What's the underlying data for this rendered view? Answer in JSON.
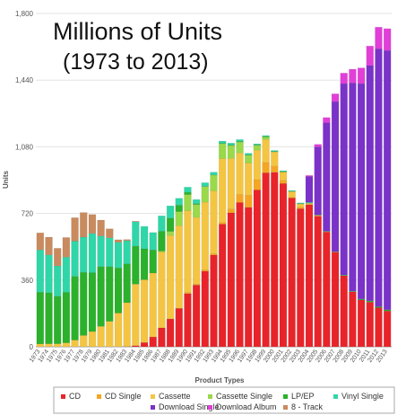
{
  "chart_data": {
    "type": "bar",
    "stacked": true,
    "title": "Millions of Units",
    "subtitle": "(1973 to 2013)",
    "xlabel": "Product Types",
    "ylabel": "Units",
    "ylim": [
      0,
      1800
    ],
    "yticks": [
      0,
      360,
      720,
      1080,
      1440,
      1800
    ],
    "yticklabels": [
      "0",
      "360",
      "720",
      "1,080",
      "1,440",
      "1,800"
    ],
    "grid": true,
    "legend_position": "bottom",
    "categories": [
      "1973",
      "1974",
      "1975",
      "1976",
      "1977",
      "1978",
      "1979",
      "1980",
      "1981",
      "1982",
      "1983",
      "1984",
      "1985",
      "1986",
      "1987",
      "1988",
      "1989",
      "1990",
      "1991",
      "1992",
      "1993",
      "1994",
      "1995",
      "1996",
      "1997",
      "1998",
      "1999",
      "2000",
      "2001",
      "2002",
      "2003",
      "2004",
      "2005",
      "2006",
      "2007",
      "2008",
      "2009",
      "2010",
      "2011",
      "2012",
      "2013"
    ],
    "series": [
      {
        "name": "CD",
        "color": "#e8242a",
        "values": [
          0,
          0,
          0,
          0,
          0,
          0,
          0,
          0,
          0,
          0,
          1,
          6,
          23,
          53,
          102,
          150,
          207,
          287,
          333,
          408,
          495,
          662,
          723,
          779,
          753,
          847,
          939,
          942,
          882,
          803,
          746,
          767,
          705,
          619,
          511,
          384,
          297,
          253,
          241,
          211,
          193
        ]
      },
      {
        "name": "CD Single",
        "color": "#f5a623",
        "values": [
          0,
          0,
          0,
          0,
          0,
          0,
          0,
          0,
          0,
          0,
          0,
          0,
          0,
          0,
          0,
          1,
          1,
          6,
          6,
          7,
          7,
          9,
          21,
          43,
          66,
          56,
          56,
          34,
          17,
          4,
          8,
          3,
          3,
          2,
          1,
          0,
          0,
          0,
          0,
          0,
          0
        ]
      },
      {
        "name": "Cassette",
        "color": "#f4c542",
        "values": [
          15,
          16,
          16,
          21,
          36,
          61,
          82,
          110,
          137,
          182,
          237,
          332,
          339,
          345,
          410,
          450,
          446,
          442,
          360,
          366,
          340,
          345,
          273,
          225,
          173,
          159,
          124,
          76,
          45,
          31,
          17,
          5,
          2,
          1,
          0,
          0,
          0,
          0,
          0,
          0,
          0
        ]
      },
      {
        "name": "Cassette Single",
        "color": "#9ad94a",
        "values": [
          0,
          0,
          0,
          0,
          0,
          0,
          0,
          0,
          0,
          0,
          0,
          0,
          0,
          0,
          5,
          22,
          76,
          87,
          69,
          84,
          85,
          81,
          70,
          59,
          42,
          26,
          14,
          1,
          0,
          0,
          0,
          0,
          0,
          0,
          0,
          0,
          0,
          0,
          0,
          0,
          0
        ]
      },
      {
        "name": "LP/EP",
        "color": "#2bb12b",
        "values": [
          280,
          276,
          257,
          273,
          344,
          341,
          318,
          323,
          296,
          244,
          210,
          205,
          167,
          125,
          107,
          72,
          35,
          12,
          5,
          2,
          1,
          2,
          2,
          3,
          3,
          3,
          3,
          2,
          2,
          2,
          2,
          1,
          1,
          1,
          1,
          3,
          3,
          4,
          6,
          5,
          6
        ]
      },
      {
        "name": "Vinyl Single",
        "color": "#2fd6a8",
        "values": [
          228,
          204,
          164,
          190,
          190,
          190,
          212,
          165,
          155,
          138,
          125,
          132,
          121,
          94,
          83,
          66,
          37,
          28,
          22,
          19,
          15,
          12,
          11,
          10,
          8,
          5,
          5,
          5,
          5,
          4,
          4,
          4,
          1,
          1,
          1,
          1,
          1,
          1,
          1,
          1,
          1
        ]
      },
      {
        "name": "Download Single",
        "color": "#7a32c8",
        "values": [
          0,
          0,
          0,
          0,
          0,
          0,
          0,
          0,
          0,
          0,
          0,
          0,
          0,
          0,
          0,
          0,
          0,
          0,
          0,
          0,
          0,
          0,
          0,
          0,
          0,
          0,
          0,
          0,
          0,
          0,
          0,
          140,
          367,
          586,
          810,
          1033,
          1124,
          1163,
          1271,
          1392,
          1400
        ]
      },
      {
        "name": "Download Album",
        "color": "#e13fd8",
        "values": [
          0,
          0,
          0,
          0,
          0,
          0,
          0,
          0,
          0,
          0,
          0,
          0,
          0,
          0,
          0,
          0,
          0,
          0,
          0,
          0,
          0,
          0,
          0,
          0,
          0,
          0,
          0,
          0,
          0,
          0,
          0,
          5,
          14,
          28,
          42,
          57,
          74,
          85,
          105,
          117,
          118
        ]
      },
      {
        "name": "8 - Track",
        "color": "#c98a5e",
        "values": [
          92,
          96,
          95,
          106,
          127,
          133,
          102,
          86,
          49,
          14,
          6,
          3,
          0,
          0,
          0,
          0,
          0,
          0,
          0,
          0,
          0,
          0,
          0,
          0,
          0,
          0,
          0,
          0,
          0,
          0,
          0,
          0,
          0,
          0,
          0,
          0,
          0,
          0,
          0,
          0,
          0
        ]
      }
    ]
  }
}
